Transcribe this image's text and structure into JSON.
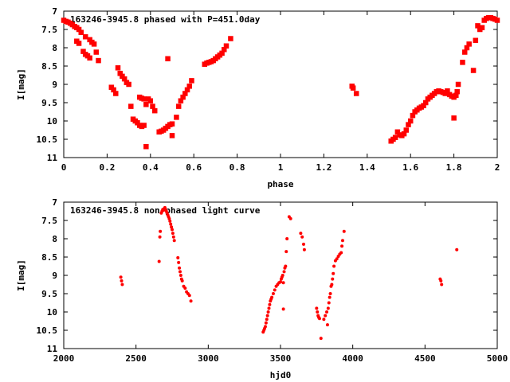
{
  "chart_data": [
    {
      "type": "scatter",
      "title": "163246-3945.8 phased with P=451.0day",
      "xlabel": "phase",
      "ylabel": "I[mag]",
      "xlim": [
        0,
        2
      ],
      "ylim": [
        7,
        11
      ],
      "y_inverted": true,
      "grid": false,
      "marker_color": "#ff0000",
      "x_ticks": [
        0,
        0.2,
        0.4,
        0.6,
        0.8,
        1,
        1.2,
        1.4,
        1.6,
        1.8,
        2
      ],
      "x_tick_labels": [
        "0",
        "0.2",
        "0.4",
        "0.6",
        "0.8",
        "1",
        "1.2",
        "1.4",
        "1.6",
        "1.8",
        "2"
      ],
      "y_ticks": [
        7,
        7.5,
        8,
        8.5,
        9,
        9.5,
        10,
        10.5,
        11
      ],
      "y_tick_labels": [
        "7",
        "7.5",
        "8",
        "8.5",
        "9",
        "9.5",
        "10",
        "10.5",
        "11"
      ],
      "series": [
        {
          "points": [
            [
              0.0,
              7.25
            ],
            [
              0.01,
              7.28
            ],
            [
              0.02,
              7.3
            ],
            [
              0.03,
              7.33
            ],
            [
              0.04,
              7.37
            ],
            [
              0.05,
              7.42
            ],
            [
              0.06,
              7.45
            ],
            [
              0.07,
              7.5
            ],
            [
              0.08,
              7.58
            ],
            [
              0.1,
              7.7
            ],
            [
              0.12,
              7.78
            ],
            [
              0.13,
              7.85
            ],
            [
              0.14,
              7.9
            ],
            [
              0.06,
              7.82
            ],
            [
              0.07,
              7.88
            ],
            [
              0.09,
              8.1
            ],
            [
              0.1,
              8.18
            ],
            [
              0.11,
              8.22
            ],
            [
              0.12,
              8.28
            ],
            [
              0.15,
              8.12
            ],
            [
              0.16,
              8.35
            ],
            [
              0.22,
              9.08
            ],
            [
              0.23,
              9.15
            ],
            [
              0.24,
              9.25
            ],
            [
              0.25,
              8.55
            ],
            [
              0.26,
              8.7
            ],
            [
              0.27,
              8.78
            ],
            [
              0.28,
              8.85
            ],
            [
              0.29,
              8.95
            ],
            [
              0.3,
              9.0
            ],
            [
              0.31,
              9.6
            ],
            [
              0.32,
              9.95
            ],
            [
              0.33,
              10.0
            ],
            [
              0.34,
              10.05
            ],
            [
              0.35,
              10.12
            ],
            [
              0.36,
              10.15
            ],
            [
              0.37,
              10.12
            ],
            [
              0.38,
              10.7
            ],
            [
              0.35,
              9.35
            ],
            [
              0.36,
              9.38
            ],
            [
              0.37,
              9.4
            ],
            [
              0.38,
              9.55
            ],
            [
              0.39,
              9.4
            ],
            [
              0.4,
              9.45
            ],
            [
              0.41,
              9.6
            ],
            [
              0.42,
              9.72
            ],
            [
              0.44,
              10.3
            ],
            [
              0.45,
              10.28
            ],
            [
              0.46,
              10.25
            ],
            [
              0.47,
              10.2
            ],
            [
              0.48,
              10.15
            ],
            [
              0.49,
              10.1
            ],
            [
              0.5,
              10.08
            ],
            [
              0.48,
              8.3
            ],
            [
              0.5,
              10.4
            ],
            [
              0.52,
              9.9
            ],
            [
              0.53,
              9.6
            ],
            [
              0.54,
              9.45
            ],
            [
              0.55,
              9.35
            ],
            [
              0.56,
              9.25
            ],
            [
              0.57,
              9.15
            ],
            [
              0.58,
              9.05
            ],
            [
              0.59,
              8.9
            ],
            [
              0.65,
              8.45
            ],
            [
              0.66,
              8.42
            ],
            [
              0.67,
              8.4
            ],
            [
              0.68,
              8.38
            ],
            [
              0.69,
              8.35
            ],
            [
              0.7,
              8.3
            ],
            [
              0.71,
              8.25
            ],
            [
              0.72,
              8.2
            ],
            [
              0.73,
              8.15
            ],
            [
              0.74,
              8.05
            ],
            [
              0.75,
              7.95
            ],
            [
              0.77,
              7.75
            ],
            [
              1.33,
              9.05
            ],
            [
              1.335,
              9.1
            ],
            [
              1.35,
              9.25
            ],
            [
              1.51,
              10.55
            ],
            [
              1.52,
              10.5
            ],
            [
              1.53,
              10.45
            ],
            [
              1.54,
              10.3
            ],
            [
              1.55,
              10.38
            ],
            [
              1.56,
              10.4
            ],
            [
              1.57,
              10.35
            ],
            [
              1.58,
              10.25
            ],
            [
              1.59,
              10.1
            ],
            [
              1.6,
              10.0
            ],
            [
              1.61,
              9.85
            ],
            [
              1.62,
              9.75
            ],
            [
              1.63,
              9.7
            ],
            [
              1.64,
              9.65
            ],
            [
              1.65,
              9.62
            ],
            [
              1.66,
              9.58
            ],
            [
              1.67,
              9.5
            ],
            [
              1.68,
              9.4
            ],
            [
              1.69,
              9.35
            ],
            [
              1.7,
              9.3
            ],
            [
              1.71,
              9.25
            ],
            [
              1.72,
              9.2
            ],
            [
              1.73,
              9.18
            ],
            [
              1.74,
              9.2
            ],
            [
              1.75,
              9.22
            ],
            [
              1.76,
              9.25
            ],
            [
              1.77,
              9.18
            ],
            [
              1.78,
              9.28
            ],
            [
              1.79,
              9.32
            ],
            [
              1.8,
              9.35
            ],
            [
              1.81,
              9.3
            ],
            [
              1.815,
              9.2
            ],
            [
              1.82,
              9.0
            ],
            [
              1.8,
              9.92
            ],
            [
              1.84,
              8.4
            ],
            [
              1.85,
              8.12
            ],
            [
              1.86,
              8.0
            ],
            [
              1.87,
              7.9
            ],
            [
              1.89,
              8.62
            ],
            [
              1.9,
              7.8
            ],
            [
              1.91,
              7.4
            ],
            [
              1.92,
              7.5
            ],
            [
              1.93,
              7.45
            ],
            [
              1.94,
              7.25
            ],
            [
              1.95,
              7.2
            ],
            [
              1.96,
              7.18
            ],
            [
              1.97,
              7.18
            ],
            [
              1.98,
              7.2
            ],
            [
              1.99,
              7.22
            ],
            [
              2.0,
              7.25
            ]
          ]
        }
      ]
    },
    {
      "type": "scatter",
      "title": "163246-3945.8 non phased light curve",
      "xlabel": "hjd0",
      "ylabel": "I[mag]",
      "xlim": [
        2000,
        5000
      ],
      "ylim": [
        7,
        11
      ],
      "y_inverted": true,
      "grid": false,
      "marker_color": "#ff0000",
      "x_ticks": [
        2000,
        2500,
        3000,
        3500,
        4000,
        4500,
        5000
      ],
      "x_tick_labels": [
        "2000",
        "2500",
        "3000",
        "3500",
        "4000",
        "4500",
        "5000"
      ],
      "y_ticks": [
        7,
        7.5,
        8,
        8.5,
        9,
        9.5,
        10,
        10.5,
        11
      ],
      "y_tick_labels": [
        "7",
        "7.5",
        "8",
        "8.5",
        "9",
        "9.5",
        "10",
        "10.5",
        "11"
      ],
      "series": [
        {
          "points": [
            [
              2395,
              9.05
            ],
            [
              2400,
              9.15
            ],
            [
              2405,
              9.25
            ],
            [
              2660,
              8.62
            ],
            [
              2665,
              7.95
            ],
            [
              2668,
              7.8
            ],
            [
              2675,
              7.3
            ],
            [
              2680,
              7.25
            ],
            [
              2685,
              7.2
            ],
            [
              2690,
              7.22
            ],
            [
              2695,
              7.18
            ],
            [
              2700,
              7.15
            ],
            [
              2705,
              7.2
            ],
            [
              2710,
              7.25
            ],
            [
              2715,
              7.3
            ],
            [
              2720,
              7.35
            ],
            [
              2725,
              7.4
            ],
            [
              2730,
              7.45
            ],
            [
              2735,
              7.52
            ],
            [
              2740,
              7.6
            ],
            [
              2745,
              7.68
            ],
            [
              2750,
              7.75
            ],
            [
              2755,
              7.85
            ],
            [
              2760,
              7.95
            ],
            [
              2765,
              8.05
            ],
            [
              2790,
              8.52
            ],
            [
              2795,
              8.65
            ],
            [
              2800,
              8.8
            ],
            [
              2805,
              8.9
            ],
            [
              2810,
              9.0
            ],
            [
              2815,
              9.1
            ],
            [
              2820,
              9.15
            ],
            [
              2830,
              9.3
            ],
            [
              2840,
              9.35
            ],
            [
              2850,
              9.45
            ],
            [
              2860,
              9.5
            ],
            [
              2870,
              9.55
            ],
            [
              2880,
              9.7
            ],
            [
              3380,
              10.55
            ],
            [
              3385,
              10.5
            ],
            [
              3390,
              10.45
            ],
            [
              3395,
              10.4
            ],
            [
              3400,
              10.3
            ],
            [
              3405,
              10.2
            ],
            [
              3410,
              10.1
            ],
            [
              3415,
              10.0
            ],
            [
              3420,
              9.9
            ],
            [
              3425,
              9.8
            ],
            [
              3430,
              9.7
            ],
            [
              3435,
              9.65
            ],
            [
              3440,
              9.6
            ],
            [
              3450,
              9.5
            ],
            [
              3460,
              9.4
            ],
            [
              3470,
              9.3
            ],
            [
              3480,
              9.25
            ],
            [
              3490,
              9.2
            ],
            [
              3500,
              9.18
            ],
            [
              3505,
              9.1
            ],
            [
              3510,
              9.05
            ],
            [
              3515,
              9.0
            ],
            [
              3520,
              9.2
            ],
            [
              3525,
              8.9
            ],
            [
              3530,
              8.8
            ],
            [
              3535,
              8.75
            ],
            [
              3520,
              9.92
            ],
            [
              3540,
              8.35
            ],
            [
              3545,
              8.0
            ],
            [
              3560,
              7.4
            ],
            [
              3570,
              7.45
            ],
            [
              3640,
              7.85
            ],
            [
              3650,
              7.95
            ],
            [
              3660,
              8.15
            ],
            [
              3665,
              8.3
            ],
            [
              3750,
              9.9
            ],
            [
              3755,
              10.0
            ],
            [
              3760,
              10.1
            ],
            [
              3765,
              10.15
            ],
            [
              3770,
              10.18
            ],
            [
              3780,
              10.72
            ],
            [
              3800,
              10.2
            ],
            [
              3810,
              10.1
            ],
            [
              3820,
              10.0
            ],
            [
              3825,
              10.35
            ],
            [
              3830,
              9.9
            ],
            [
              3835,
              9.75
            ],
            [
              3840,
              9.6
            ],
            [
              3845,
              9.5
            ],
            [
              3850,
              9.3
            ],
            [
              3855,
              9.25
            ],
            [
              3860,
              9.1
            ],
            [
              3865,
              8.95
            ],
            [
              3870,
              8.75
            ],
            [
              3880,
              8.6
            ],
            [
              3890,
              8.55
            ],
            [
              3900,
              8.48
            ],
            [
              3910,
              8.42
            ],
            [
              3920,
              8.38
            ],
            [
              3925,
              8.2
            ],
            [
              3930,
              8.05
            ],
            [
              3940,
              7.8
            ],
            [
              4605,
              9.1
            ],
            [
              4610,
              9.15
            ],
            [
              4615,
              9.25
            ],
            [
              4720,
              8.3
            ]
          ]
        }
      ]
    }
  ]
}
